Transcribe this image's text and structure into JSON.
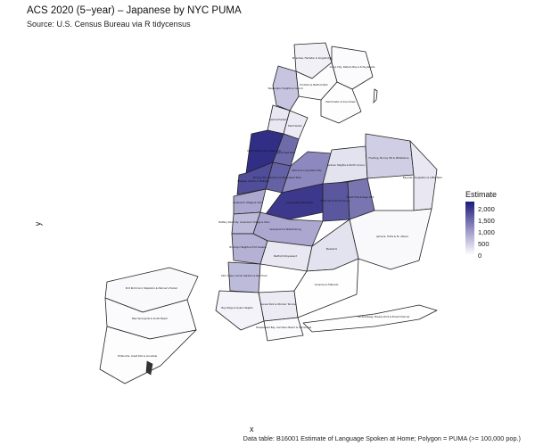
{
  "title": "ACS 2020 (5−year) – Japanese by NYC PUMA",
  "subtitle": "Source: U.S. Census Bureau via R tidycensus",
  "axis": {
    "x_label": "x",
    "y_label": "y"
  },
  "legend": {
    "title": "Estimate",
    "ticks": [
      "2,000",
      "1,500",
      "1,000",
      "500",
      "0"
    ],
    "tick_values": [
      2000,
      1500,
      1000,
      500,
      0
    ],
    "max": 2300,
    "color_low": "#ffffff",
    "color_high": "#1d1a7a"
  },
  "caption": "Data table: B16001 Estimate of Language Spoken at Home; Polygon = PUMA (>= 100,000 pop.)",
  "map_data": {
    "type": "choropleth",
    "variable": "Estimate",
    "regions": [
      {
        "id": "bx1",
        "label": "Riverdale, Fieldston & Kingsbridge",
        "estimate": 150
      },
      {
        "id": "bx2",
        "label": "Co-op City, Pelham Bay & Schuylerville",
        "estimate": 40
      },
      {
        "id": "bx3",
        "label": "Fordham & Bedford Park",
        "estimate": 30
      },
      {
        "id": "bx4",
        "label": "Parkchester & Soundview",
        "estimate": 20
      },
      {
        "id": "mn1",
        "label": "Washington Heights & Inwood",
        "estimate": 600
      },
      {
        "id": "mn2",
        "label": "Central Harlem",
        "estimate": 250
      },
      {
        "id": "mn3",
        "label": "East Harlem",
        "estimate": 200
      },
      {
        "id": "mn4",
        "label": "Upper West Side & West Side",
        "estimate": 2100
      },
      {
        "id": "mn5",
        "label": "Upper East Side",
        "estimate": 1500
      },
      {
        "id": "mn6",
        "label": "Chelsea, Clinton & Midtown",
        "estimate": 1800
      },
      {
        "id": "mn7",
        "label": "Murray Hill, Gramercy & Stuyvesant Town",
        "estimate": 1600
      },
      {
        "id": "mn8",
        "label": "Greenwich Village & Soho",
        "estimate": 900
      },
      {
        "id": "mn9",
        "label": "Battery Park City, Greenwich Village & Soho",
        "estimate": 700
      },
      {
        "id": "qn1",
        "label": "Astoria & Long Island City",
        "estimate": 1200
      },
      {
        "id": "qn2",
        "label": "Jackson Heights & North Corona",
        "estimate": 300
      },
      {
        "id": "qn3",
        "label": "Sunnyside & Woodside",
        "estimate": 2000
      },
      {
        "id": "qn4",
        "label": "Elmhurst & South Corona",
        "estimate": 1700
      },
      {
        "id": "qn5",
        "label": "Flushing, Murray Hill & Whitestone",
        "estimate": 500
      },
      {
        "id": "qn6",
        "label": "Forest Hills & Rego Park",
        "estimate": 1400
      },
      {
        "id": "qn7",
        "label": "Bayside, Douglaston & Little Neck",
        "estimate": 250
      },
      {
        "id": "qn8",
        "label": "Jamaica, Hollis & St. Albans",
        "estimate": 60
      },
      {
        "id": "qn9",
        "label": "Far Rockaway, Breezy Point & Broad Channel",
        "estimate": 20
      },
      {
        "id": "bk1",
        "label": "Greenpoint & Williamsburg",
        "estimate": 900
      },
      {
        "id": "bk2",
        "label": "Brooklyn Heights & Fort Greene",
        "estimate": 800
      },
      {
        "id": "bk3",
        "label": "Park Slope, Carroll Gardens & Red Hook",
        "estimate": 700
      },
      {
        "id": "bk4",
        "label": "Bedford-Stuyvesant",
        "estimate": 250
      },
      {
        "id": "bk5",
        "label": "Bushwick",
        "estimate": 300
      },
      {
        "id": "bk6",
        "label": "Sunset Park & Windsor Terrace",
        "estimate": 200
      },
      {
        "id": "bk7",
        "label": "Bay Ridge & Dyker Heights",
        "estimate": 120
      },
      {
        "id": "bk8",
        "label": "Sheepshead Bay, Gerritsen Beach & Homecrest",
        "estimate": 40
      },
      {
        "id": "bk9",
        "label": "Canarsie & Flatlands",
        "estimate": 15
      },
      {
        "id": "si1",
        "label": "Port Richmond, Stapleton & Mariner's Harbor",
        "estimate": 60
      },
      {
        "id": "si2",
        "label": "New Springville & South Beach",
        "estimate": 40
      },
      {
        "id": "si3",
        "label": "Tottenville, Great Kills & Annadale",
        "estimate": 20
      }
    ]
  }
}
